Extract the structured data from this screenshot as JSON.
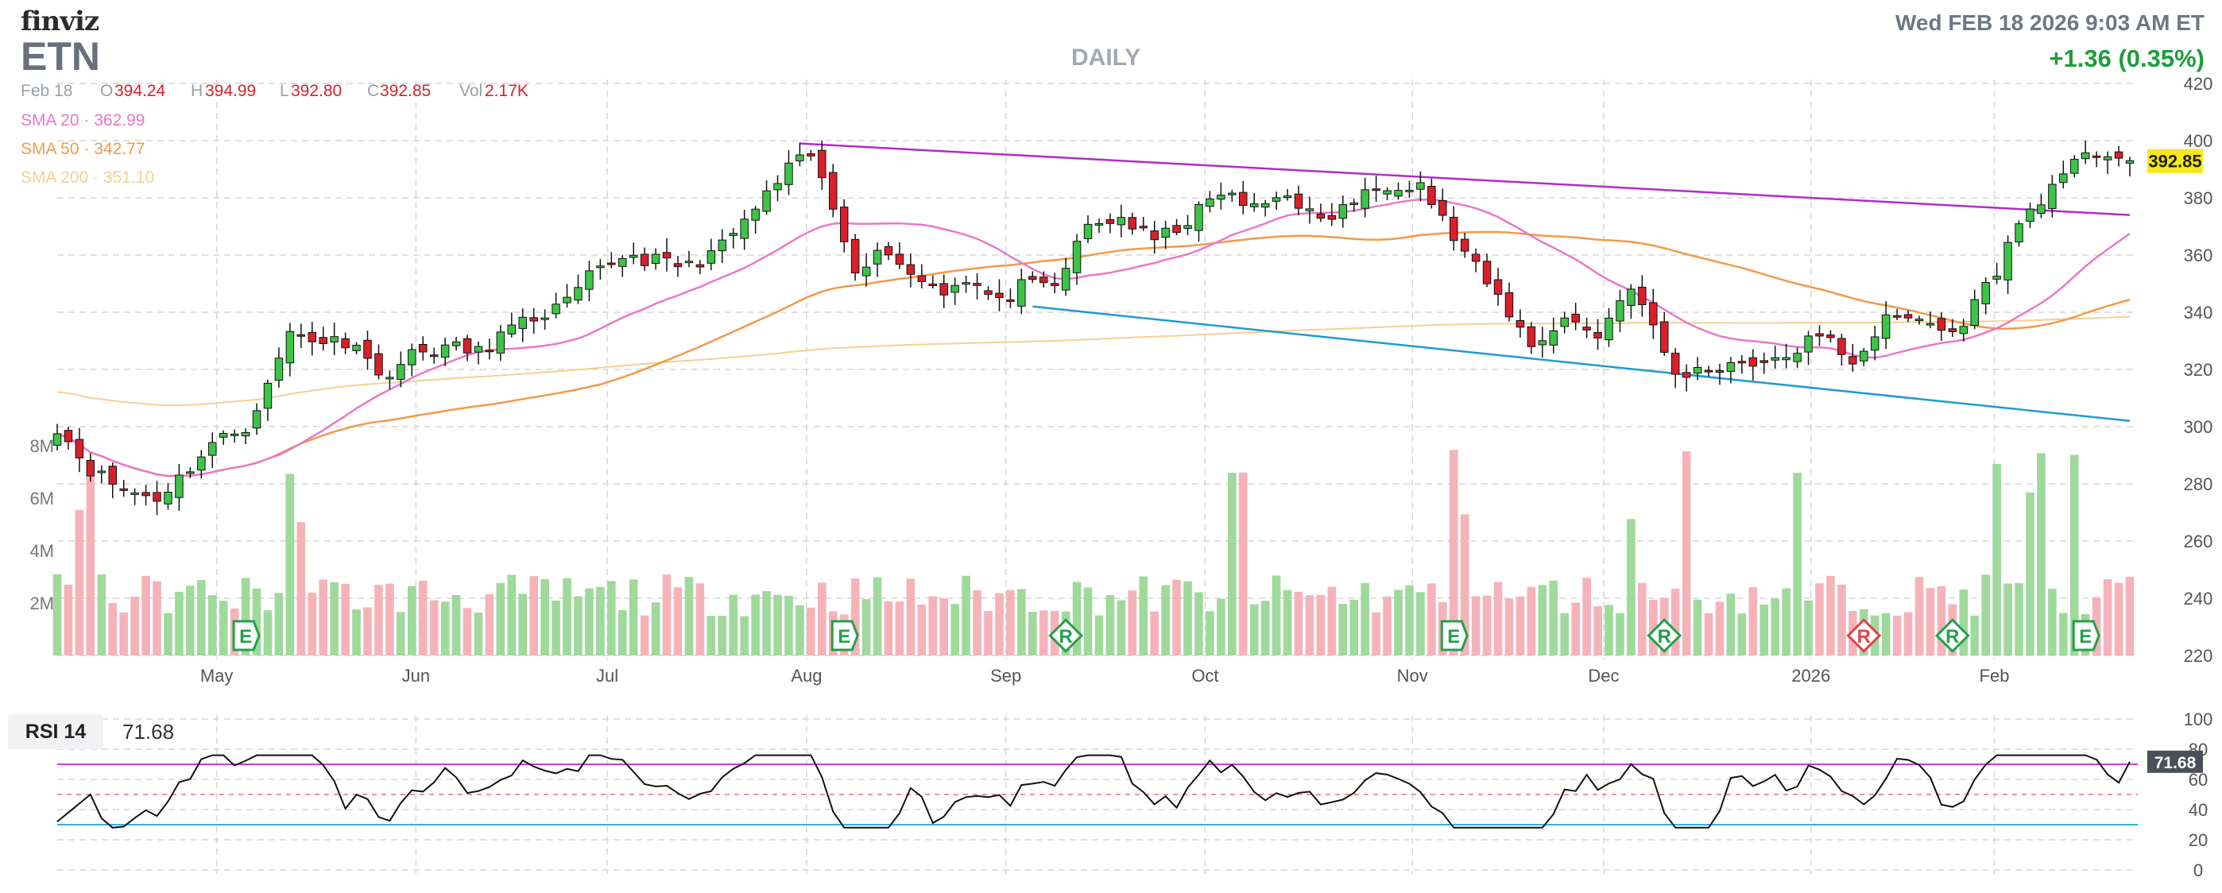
{
  "header": {
    "logo": "finviz",
    "ticker": "ETN",
    "datetime": "Wed FEB 18 2026 9:03 AM ET",
    "change": "+1.36 (0.35%)",
    "timeframe": "DAILY"
  },
  "ohlc": {
    "date": "Feb 18",
    "open_label": "O",
    "open": "394.24",
    "high_label": "H",
    "high": "394.99",
    "low_label": "L",
    "low": "392.80",
    "close_label": "C",
    "close": "392.85",
    "vol_label": "Vol",
    "vol": "2.17K"
  },
  "indicators": [
    {
      "label": "SMA 20",
      "value": "362.99",
      "color": "#e879c9"
    },
    {
      "label": "SMA 50",
      "value": "342.77",
      "color": "#f29a4a"
    },
    {
      "label": "SMA 200",
      "value": "351.10",
      "color": "#f7cf91"
    }
  ],
  "rsi": {
    "label": "RSI 14",
    "value": "71.68"
  },
  "colors": {
    "up": "#22a83a",
    "up_fill": "#3cc447",
    "down": "#d9202a",
    "vol_up": "#9fd99b",
    "vol_down": "#f5b3b9",
    "trend_upper": "#b12cc7",
    "trend_lower": "#1f9bd1",
    "price_label": "#f6e81c",
    "grid": "#d6d6d6"
  },
  "chart_data": {
    "type": "candlestick",
    "x_axis": {
      "tick_labels": [
        "May",
        "Jun",
        "Jul",
        "Aug",
        "Sep",
        "Oct",
        "Nov",
        "Dec",
        "2026",
        "Feb"
      ]
    },
    "price_axis": {
      "ylim": [
        220,
        420
      ],
      "tick_labels": [
        "220",
        "240",
        "260",
        "280",
        "300",
        "320",
        "340",
        "360",
        "380",
        "400",
        "420"
      ]
    },
    "volume_axis": {
      "tick_labels": [
        "2M",
        "4M",
        "6M",
        "8M"
      ],
      "ylim_millions": [
        0,
        9
      ]
    },
    "rsi_axis": {
      "ylim": [
        0,
        100
      ],
      "tick_labels": [
        "0",
        "20",
        "40",
        "60",
        "80",
        "100"
      ],
      "overbought": 70,
      "oversold": 30
    },
    "last_price": "392.85",
    "anchors": [
      [
        0,
        300
      ],
      [
        3,
        285
      ],
      [
        6,
        278
      ],
      [
        9,
        275
      ],
      [
        11,
        282
      ],
      [
        14,
        294
      ],
      [
        17,
        300
      ],
      [
        19,
        314
      ],
      [
        21,
        333
      ],
      [
        24,
        330
      ],
      [
        27,
        330
      ],
      [
        29,
        317
      ],
      [
        32,
        325
      ],
      [
        35,
        328
      ],
      [
        38,
        326
      ],
      [
        40,
        332
      ],
      [
        43,
        338
      ],
      [
        46,
        343
      ],
      [
        48,
        352
      ],
      [
        51,
        360
      ],
      [
        54,
        358
      ],
      [
        57,
        356
      ],
      [
        60,
        363
      ],
      [
        63,
        376
      ],
      [
        66,
        390
      ],
      [
        68,
        395
      ],
      [
        70,
        376
      ],
      [
        72,
        356
      ],
      [
        75,
        362
      ],
      [
        77,
        353
      ],
      [
        80,
        348
      ],
      [
        82,
        352
      ],
      [
        85,
        343
      ],
      [
        87,
        349
      ],
      [
        90,
        349
      ],
      [
        93,
        370
      ],
      [
        96,
        373
      ],
      [
        99,
        365
      ],
      [
        102,
        372
      ],
      [
        105,
        382
      ],
      [
        108,
        376
      ],
      [
        111,
        382
      ],
      [
        114,
        371
      ],
      [
        117,
        379
      ],
      [
        120,
        385
      ],
      [
        123,
        385
      ],
      [
        126,
        366
      ],
      [
        129,
        350
      ],
      [
        131,
        340
      ],
      [
        133,
        328
      ],
      [
        136,
        338
      ],
      [
        139,
        332
      ],
      [
        142,
        350
      ],
      [
        144,
        334
      ],
      [
        146,
        318
      ],
      [
        149,
        320
      ],
      [
        152,
        323
      ],
      [
        155,
        322
      ],
      [
        158,
        330
      ],
      [
        160,
        330
      ],
      [
        162,
        323
      ],
      [
        165,
        337
      ],
      [
        168,
        338
      ],
      [
        171,
        332
      ],
      [
        173,
        343
      ],
      [
        175,
        355
      ],
      [
        177,
        371
      ],
      [
        179,
        380
      ],
      [
        181,
        386
      ],
      [
        183,
        397
      ],
      [
        185,
        395
      ],
      [
        187,
        393
      ]
    ],
    "markers": [
      {
        "type": "E",
        "index": 17
      },
      {
        "type": "E",
        "index": 71
      },
      {
        "type": "R",
        "index": 91
      },
      {
        "type": "E",
        "index": 126
      },
      {
        "type": "R",
        "index": 145
      },
      {
        "type": "R",
        "index": 163
      },
      {
        "type": "R",
        "index": 171
      },
      {
        "type": "E",
        "index": 183
      }
    ],
    "trendlines": [
      {
        "name": "upper",
        "from": [
          67,
          399
        ],
        "to": [
          187,
          374
        ]
      },
      {
        "name": "lower",
        "from": [
          88,
          342
        ],
        "to": [
          187,
          302
        ]
      }
    ]
  }
}
